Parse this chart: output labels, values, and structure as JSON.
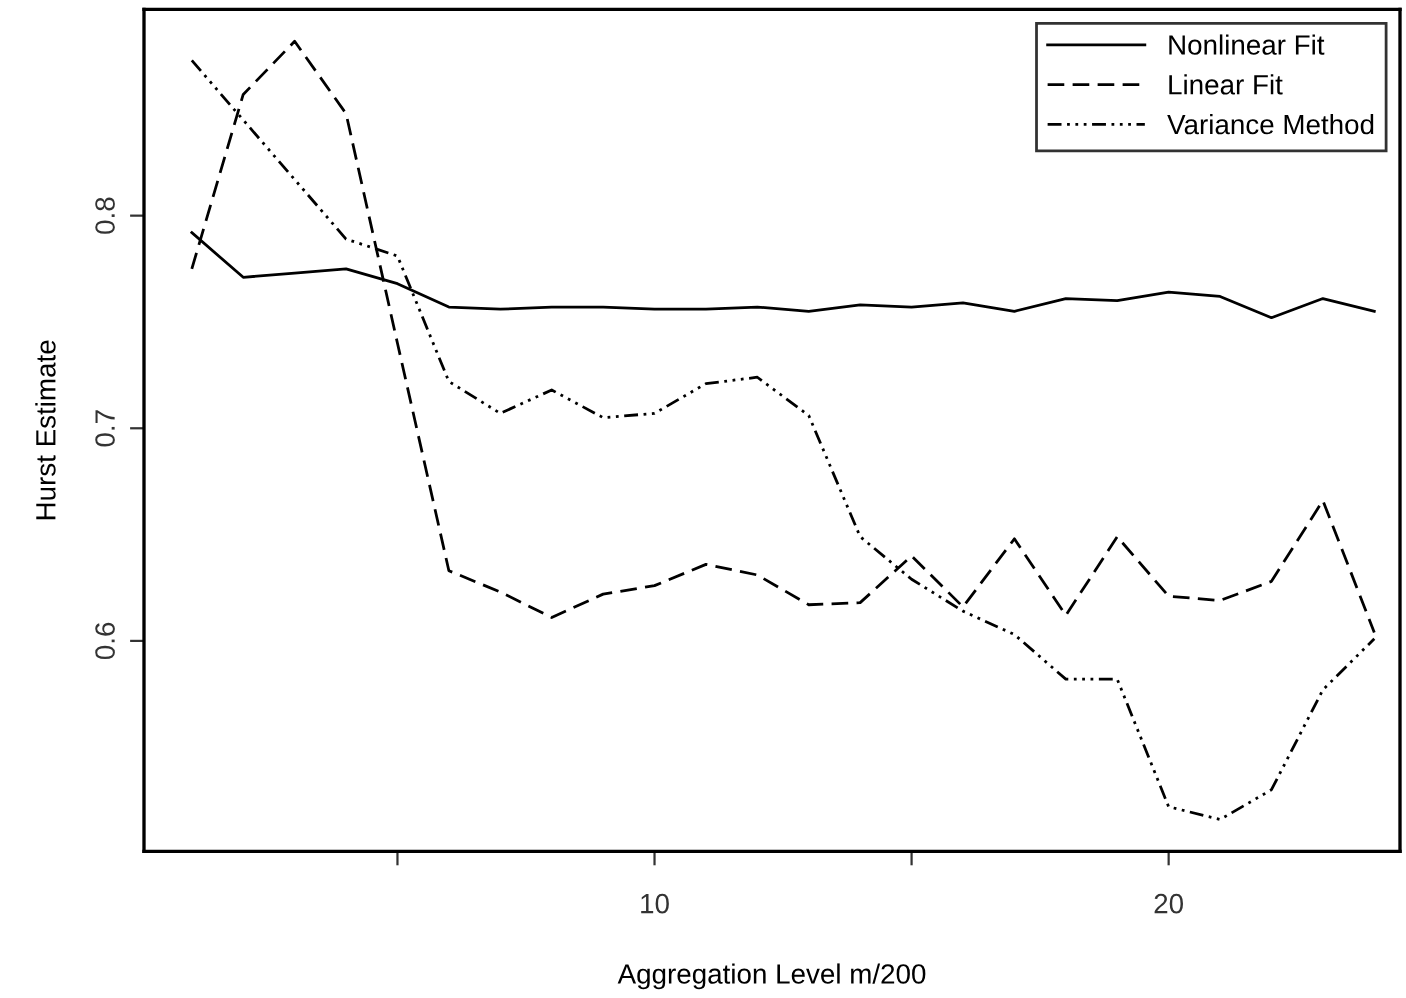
{
  "chart_data": {
    "type": "line",
    "xlabel": "Aggregation Level m/200",
    "ylabel": "Hurst Estimate",
    "x": [
      1,
      2,
      3,
      4,
      5,
      6,
      7,
      8,
      9,
      10,
      11,
      12,
      13,
      14,
      15,
      16,
      17,
      18,
      19,
      20,
      21,
      22,
      23,
      24
    ],
    "series": [
      {
        "name": "Nonlinear Fit",
        "color": "#000000",
        "line_style": "solid",
        "values": [
          0.792,
          0.771,
          0.773,
          0.775,
          0.768,
          0.757,
          0.756,
          0.757,
          0.757,
          0.756,
          0.756,
          0.757,
          0.755,
          0.758,
          0.757,
          0.759,
          0.755,
          0.761,
          0.76,
          0.764,
          0.762,
          0.752,
          0.761,
          0.755
        ]
      },
      {
        "name": "Linear Fit",
        "color": "#000000",
        "line_style": "dashed",
        "values": [
          0.775,
          0.857,
          0.882,
          0.848,
          0.74,
          0.633,
          0.623,
          0.611,
          0.622,
          0.626,
          0.636,
          0.631,
          0.617,
          0.618,
          0.64,
          0.616,
          0.648,
          0.612,
          0.649,
          0.621,
          0.619,
          0.628,
          0.666,
          0.604
        ]
      },
      {
        "name": "Variance Method",
        "color": "#000000",
        "line_style": "dotted",
        "values": [
          0.873,
          0.845,
          0.817,
          0.789,
          0.781,
          0.722,
          0.707,
          0.718,
          0.705,
          0.707,
          0.721,
          0.724,
          0.706,
          0.649,
          0.629,
          0.614,
          0.603,
          0.582,
          0.582,
          0.522,
          0.516,
          0.53,
          0.577,
          0.601
        ]
      }
    ],
    "xlim": [
      0.07,
      24.5
    ],
    "ylim": [
      0.501,
      0.897
    ],
    "xticks": [
      {
        "value": 5,
        "label": null
      },
      10,
      {
        "value": 15,
        "label": null
      },
      20
    ],
    "yticks": [
      0.6,
      0.7,
      0.8
    ],
    "grid": false,
    "legend": "top right",
    "marker": "none"
  }
}
